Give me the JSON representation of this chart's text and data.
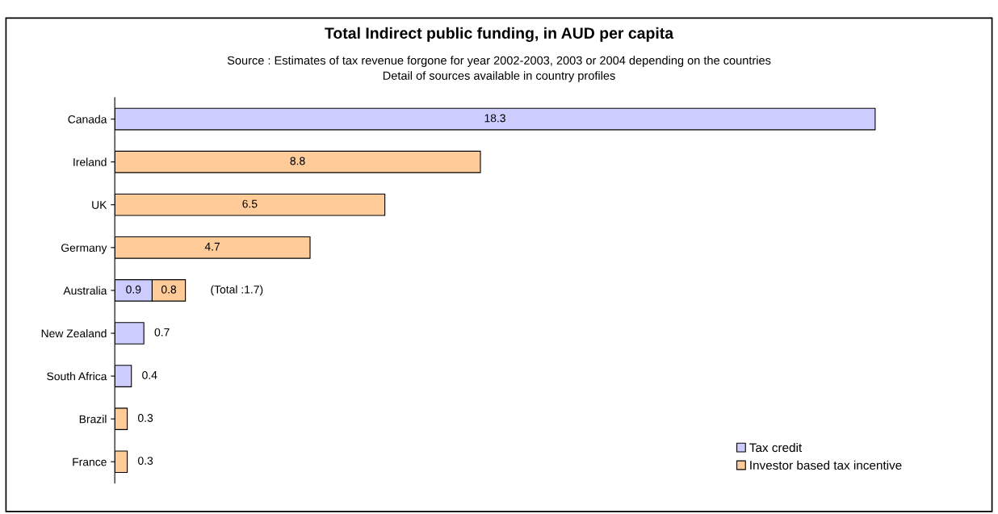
{
  "chart_data": {
    "type": "bar",
    "orientation": "horizontal",
    "stacked": true,
    "title": "Total Indirect public funding, in AUD per capita",
    "subtitle": "Source : Estimates of tax revenue forgone for year 2002-2003, 2003 or 2004 depending on the countries\nDetail of sources available in country profiles",
    "categories": [
      "Canada",
      "Ireland",
      "UK",
      "Germany",
      "Australia",
      "New Zealand",
      "South Africa",
      "Brazil",
      "France"
    ],
    "series": [
      {
        "name": "Tax credit",
        "color": "#ccccff",
        "values": [
          18.3,
          null,
          null,
          null,
          0.9,
          0.7,
          0.4,
          null,
          null
        ]
      },
      {
        "name": "Investor based tax incentive",
        "color": "#ffcc99",
        "values": [
          null,
          8.8,
          6.5,
          4.7,
          0.8,
          null,
          null,
          0.3,
          0.3
        ]
      }
    ],
    "data_labels": true,
    "totals": [
      null,
      null,
      null,
      null,
      "(Total :1.7)",
      null,
      null,
      null,
      null
    ],
    "legend": "bottom right",
    "grid": false
  }
}
